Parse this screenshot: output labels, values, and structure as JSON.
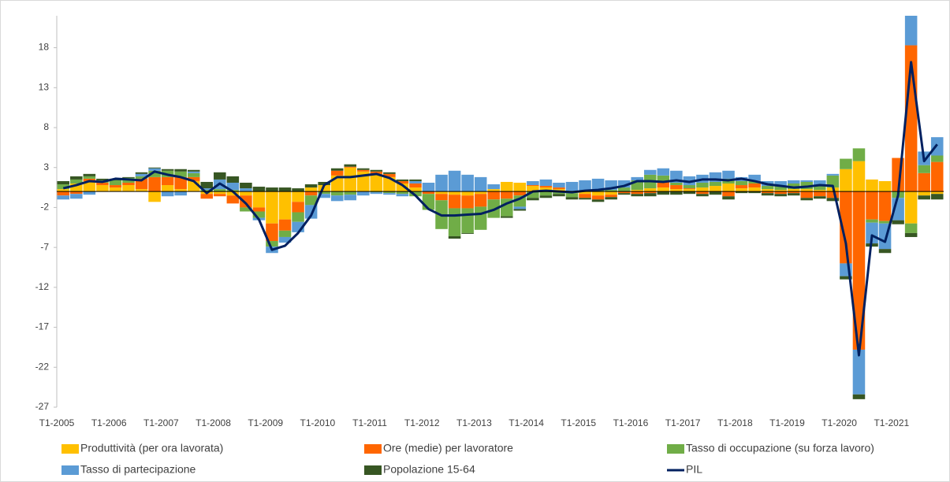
{
  "chart_data": {
    "type": "bar",
    "stacked": true,
    "categories": [
      "T1-2005",
      null,
      null,
      null,
      "T1-2006",
      null,
      null,
      null,
      "T1-2007",
      null,
      null,
      null,
      "T1-2008",
      null,
      null,
      null,
      "T1-2009",
      null,
      null,
      null,
      "T1-2010",
      null,
      null,
      null,
      "T1-2011",
      null,
      null,
      null,
      "T1-2012",
      null,
      null,
      null,
      "T1-2013",
      null,
      null,
      null,
      "T1-2014",
      null,
      null,
      null,
      "T1-2015",
      null,
      null,
      null,
      "T1-2016",
      null,
      null,
      null,
      "T1-2017",
      null,
      null,
      null,
      "T1-2018",
      null,
      null,
      null,
      "T1-2019",
      null,
      null,
      null,
      "T1-2020",
      null,
      null,
      null,
      "T1-2021",
      null,
      null,
      null
    ],
    "ylim": [
      -27,
      22
    ],
    "yticks": [
      -27,
      -22,
      -17,
      -12,
      -7,
      -2,
      3,
      8,
      13,
      18
    ],
    "series": [
      {
        "name": "Produttività (per ora lavorata)",
        "color": "#FFC000",
        "type": "bar",
        "values": [
          0.3,
          1.0,
          1.3,
          0.8,
          0.5,
          0.8,
          0.3,
          -1.3,
          0.8,
          0.3,
          1.3,
          -0.3,
          -0.3,
          -0.5,
          -0.5,
          -2.0,
          -4.0,
          -3.5,
          -1.3,
          0.5,
          0.8,
          2.0,
          3.0,
          2.5,
          2.2,
          1.8,
          1.0,
          0.5,
          0.0,
          -0.3,
          -0.4,
          -0.5,
          -0.3,
          0.3,
          1.2,
          1.1,
          0.7,
          0.5,
          0.3,
          -0.2,
          -0.3,
          -0.5,
          -0.4,
          0.0,
          0.2,
          0.4,
          0.5,
          0.3,
          0.3,
          0.5,
          0.7,
          1.0,
          0.4,
          0.5,
          0.3,
          0.2,
          0.3,
          0.3,
          0.2,
          0.5,
          2.8,
          3.8,
          1.5,
          1.3,
          0.0,
          -4.0,
          -0.5,
          -0.3
        ]
      },
      {
        "name": "Ore (medie) per lavoratore",
        "color": "#FF6600",
        "type": "bar",
        "values": [
          -0.5,
          -0.3,
          0.3,
          0.3,
          0.3,
          0.3,
          1.3,
          1.8,
          1.0,
          1.5,
          0.5,
          -0.6,
          -0.3,
          -1.0,
          -1.5,
          -0.5,
          -2.2,
          -1.4,
          -1.3,
          -0.5,
          0.0,
          0.6,
          0.1,
          0.2,
          0.3,
          0.4,
          0.3,
          0.5,
          -0.3,
          -0.8,
          -1.7,
          -1.6,
          -1.6,
          -1.0,
          -0.9,
          -0.5,
          0.1,
          0.2,
          0.2,
          0.0,
          -0.5,
          -0.5,
          -0.3,
          -0.2,
          -0.3,
          -0.2,
          0.8,
          0.5,
          0.1,
          -0.3,
          0.0,
          -0.6,
          0.4,
          0.5,
          -0.2,
          -0.3,
          -0.2,
          -0.8,
          -0.6,
          -0.8,
          -9.0,
          -19.8,
          -3.5,
          -3.7,
          4.2,
          18.3,
          2.3,
          3.7
        ]
      },
      {
        "name": "Tasso di occupazione (su forza lavoro)",
        "color": "#70AD47",
        "type": "bar",
        "values": [
          0.6,
          0.5,
          0.3,
          0.3,
          0.6,
          0.6,
          0.3,
          0.8,
          0.8,
          0.7,
          0.5,
          0.2,
          0.3,
          0.2,
          -0.5,
          -0.8,
          -0.7,
          -0.8,
          -1.2,
          -1.2,
          -0.3,
          -0.5,
          -0.4,
          0.0,
          -0.1,
          -0.2,
          -0.3,
          -0.6,
          -2.0,
          -3.6,
          -3.5,
          -3.1,
          -2.9,
          -2.3,
          -2.2,
          -1.4,
          -0.8,
          -0.5,
          -0.3,
          -0.5,
          0.1,
          0.3,
          0.2,
          0.5,
          1.2,
          1.7,
          0.7,
          0.3,
          0.4,
          0.6,
          0.5,
          0.6,
          0.5,
          0.3,
          0.4,
          0.5,
          0.7,
          0.9,
          0.6,
          1.5,
          1.3,
          1.6,
          -0.4,
          -0.3,
          -0.8,
          -1.2,
          1.0,
          0.8
        ]
      },
      {
        "name": "Tasso di partecipazione",
        "color": "#5B9BD5",
        "type": "bar",
        "values": [
          -0.5,
          -0.6,
          -0.4,
          0.0,
          0.0,
          0.0,
          0.3,
          0.3,
          -0.6,
          -0.5,
          0.2,
          0.2,
          1.2,
          0.9,
          0.4,
          -0.3,
          -0.8,
          -0.7,
          -1.3,
          -1.7,
          -0.5,
          -0.7,
          -0.7,
          -0.5,
          -0.2,
          -0.2,
          -0.3,
          0.3,
          1.1,
          2.1,
          2.6,
          2.1,
          1.8,
          0.6,
          0.0,
          -0.3,
          0.5,
          0.8,
          0.6,
          1.2,
          1.3,
          1.3,
          1.2,
          0.9,
          0.4,
          0.6,
          0.9,
          1.5,
          1.1,
          1.0,
          1.2,
          1.0,
          0.5,
          0.8,
          0.6,
          0.6,
          0.4,
          0.2,
          0.6,
          0.2,
          -1.6,
          -5.6,
          -2.6,
          -3.2,
          -2.8,
          4.0,
          1.7,
          2.3
        ]
      },
      {
        "name": "Popolazione 15-64",
        "color": "#375623",
        "type": "bar",
        "values": [
          0.4,
          0.4,
          0.3,
          0.2,
          0.2,
          0.1,
          0.2,
          0.1,
          0.2,
          0.3,
          0.2,
          0.8,
          0.9,
          0.8,
          0.7,
          0.6,
          0.5,
          0.5,
          0.4,
          0.4,
          0.4,
          0.3,
          0.3,
          0.2,
          0.2,
          0.2,
          0.2,
          0.2,
          0.0,
          0.0,
          -0.3,
          -0.1,
          0.0,
          0.0,
          -0.2,
          -0.2,
          -0.3,
          -0.3,
          -0.3,
          -0.3,
          -0.2,
          -0.3,
          -0.3,
          -0.2,
          -0.3,
          -0.4,
          -0.4,
          -0.4,
          -0.3,
          -0.3,
          -0.4,
          -0.4,
          -0.2,
          -0.2,
          -0.3,
          -0.3,
          -0.3,
          -0.3,
          -0.3,
          -0.4,
          -0.4,
          -0.6,
          -0.4,
          -0.5,
          -0.5,
          -0.5,
          -0.5,
          -0.7
        ]
      },
      {
        "name": "PIL",
        "color": "#002060",
        "type": "line",
        "values": [
          0.4,
          0.8,
          1.3,
          1.2,
          1.6,
          1.5,
          1.4,
          2.5,
          2.1,
          1.8,
          1.3,
          -0.2,
          1.0,
          0.0,
          -1.5,
          -3.5,
          -7.3,
          -6.8,
          -5.2,
          -3.0,
          0.8,
          1.8,
          1.8,
          2.0,
          2.2,
          1.7,
          0.8,
          -0.5,
          -2.2,
          -3.0,
          -3.0,
          -2.9,
          -2.8,
          -2.3,
          -1.5,
          -0.9,
          0.0,
          0.1,
          0.0,
          -0.1,
          0.1,
          0.2,
          0.4,
          0.7,
          1.3,
          1.3,
          1.2,
          1.4,
          1.2,
          1.5,
          1.5,
          1.4,
          1.6,
          1.3,
          0.9,
          0.7,
          0.5,
          0.6,
          0.8,
          0.7,
          -6.5,
          -20.5,
          -5.5,
          -6.3,
          -0.5,
          16.2,
          3.8,
          5.9
        ]
      }
    ]
  }
}
